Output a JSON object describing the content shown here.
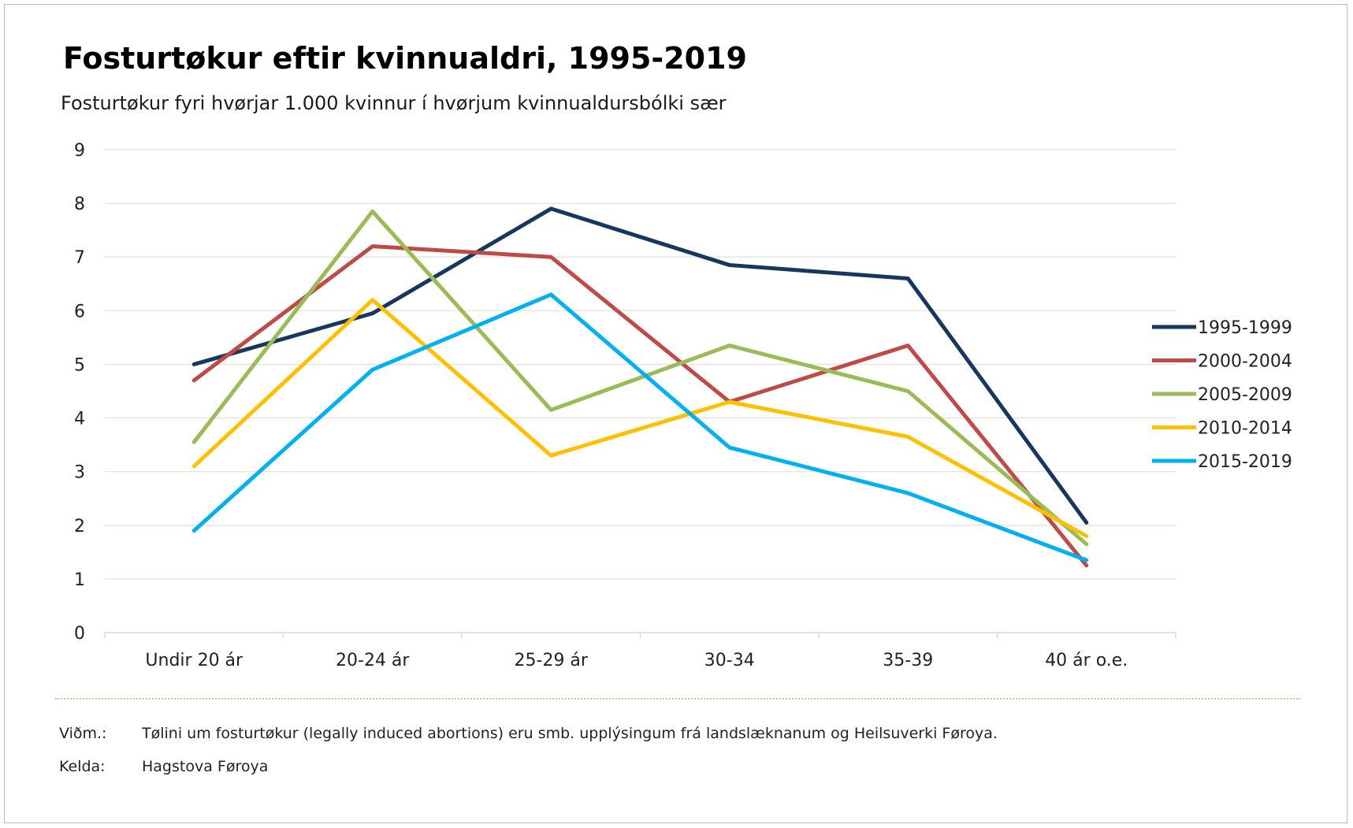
{
  "title": "Fosturtøkur eftir kvinnualdri, 1995-2019",
  "subtitle": "Fosturtøkur fyri hvørjar 1.000 kvinnur í hvørjum kvinnualdursbólki sær",
  "notes": {
    "note_label": "Viðm.:",
    "note_text": "Tølini um fosturtøkur (legally induced abortions) eru smb. upplýsingum frá landslæknanum og Heilsuverki Føroya.",
    "source_label": "Kelda:",
    "source_text": "Hagstova Føroya"
  },
  "chart_data": {
    "type": "line",
    "title": "Fosturtøkur eftir kvinnualdri, 1995-2019",
    "subtitle": "Fosturtøkur fyri hvørjar 1.000 kvinnur í hvørjum kvinnualdursbólki sær",
    "xlabel": "",
    "ylabel": "",
    "categories": [
      "Undir 20 ár",
      "20-24 ár",
      "25-29 ár",
      "30-34",
      "35-39",
      "40 ár o.e."
    ],
    "ylim": [
      0,
      9
    ],
    "yticks": [
      "0",
      "1",
      "2",
      "3",
      "4",
      "5",
      "6",
      "7",
      "8",
      "9"
    ],
    "grid": "horizontal",
    "legend_position": "right",
    "series": [
      {
        "name": "1995-1999",
        "color": "#17375e",
        "values": [
          5.0,
          5.95,
          7.9,
          6.85,
          6.6,
          2.05
        ]
      },
      {
        "name": "2000-2004",
        "color": "#be4b48",
        "values": [
          4.7,
          7.2,
          7.0,
          4.3,
          5.35,
          1.25
        ]
      },
      {
        "name": "2005-2009",
        "color": "#9bbb59",
        "values": [
          3.55,
          7.85,
          4.15,
          5.35,
          4.5,
          1.65
        ]
      },
      {
        "name": "2010-2014",
        "color": "#ffc000",
        "values": [
          3.1,
          6.2,
          3.3,
          4.3,
          3.65,
          1.8
        ]
      },
      {
        "name": "2015-2019",
        "color": "#00b0f0",
        "values": [
          1.9,
          4.9,
          6.3,
          3.45,
          2.6,
          1.35
        ]
      }
    ]
  }
}
